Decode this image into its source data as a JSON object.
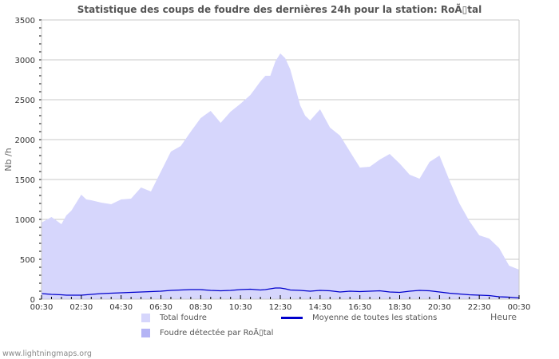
{
  "title": "Statistique des coups de foudre des dernières 24h pour la station: RoÃ▯tal",
  "footer": "www.lightningmaps.org",
  "legend": {
    "total": {
      "label": "Total foudre",
      "color": "#d6d6fc"
    },
    "average": {
      "label": "Moyenne de toutes les stations",
      "color": "#0000cc"
    },
    "detected": {
      "label": "Foudre détectée par RoÃ▯tal",
      "color": "#b4b4f5"
    }
  },
  "chart_data": {
    "type": "area",
    "title": "Statistique des coups de foudre des dernières 24h pour la station: RoÃ▯tal",
    "xlabel": "Heure",
    "ylabel": "Nb /h",
    "ylim": [
      0,
      3500
    ],
    "yticks": [
      0,
      500,
      1000,
      1500,
      2000,
      2500,
      3000,
      3500
    ],
    "xticks": [
      "00:30",
      "02:30",
      "04:30",
      "06:30",
      "08:30",
      "10:30",
      "12:30",
      "14:30",
      "16:30",
      "18:30",
      "20:30",
      "22:30",
      "00:30"
    ],
    "grid": true,
    "legend_position": "bottom",
    "x_hours": [
      0,
      0.5,
      1,
      1.25,
      1.5,
      2,
      2.25,
      2.5,
      3,
      3.5,
      4,
      4.5,
      5,
      5.5,
      6,
      6.5,
      7,
      7.5,
      8,
      8.5,
      9,
      9.5,
      10,
      10.5,
      11,
      11.25,
      11.5,
      11.75,
      12,
      12.25,
      12.5,
      13,
      13.25,
      13.5,
      14,
      14.5,
      15,
      15.5,
      16,
      16.5,
      17,
      17.5,
      18,
      18.5,
      19,
      19.5,
      20,
      20.5,
      21,
      21.5,
      22,
      22.5,
      23,
      23.5,
      24
    ],
    "series": [
      {
        "name": "Total foudre",
        "values": [
          960,
          1030,
          940,
          1050,
          1110,
          1310,
          1250,
          1240,
          1210,
          1190,
          1250,
          1260,
          1400,
          1350,
          1600,
          1850,
          1920,
          2100,
          2270,
          2360,
          2210,
          2350,
          2450,
          2560,
          2730,
          2800,
          2800,
          2980,
          3080,
          3020,
          2880,
          2430,
          2300,
          2240,
          2380,
          2150,
          2050,
          1850,
          1650,
          1660,
          1750,
          1820,
          1700,
          1560,
          1510,
          1720,
          1800,
          1490,
          1200,
          980,
          800,
          760,
          640,
          420,
          370
        ]
      },
      {
        "name": "Moyenne de toutes les stations",
        "values": [
          70,
          60,
          55,
          50,
          50,
          50,
          55,
          60,
          70,
          75,
          80,
          85,
          90,
          95,
          100,
          110,
          115,
          120,
          120,
          110,
          105,
          110,
          120,
          125,
          115,
          120,
          130,
          140,
          140,
          130,
          115,
          110,
          105,
          100,
          110,
          105,
          90,
          100,
          95,
          100,
          105,
          90,
          85,
          100,
          110,
          105,
          90,
          75,
          65,
          55,
          50,
          45,
          30,
          25,
          15
        ]
      }
    ]
  }
}
